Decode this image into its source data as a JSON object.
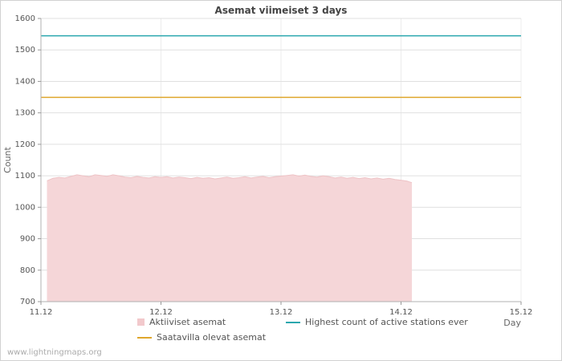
{
  "page": {
    "watermark": "www.lightningmaps.org"
  },
  "chart_data": {
    "type": "area",
    "title": "Asemat viimeiset 3 days",
    "xlabel": "Day",
    "ylabel": "Count",
    "xlim": [
      11.0,
      15.0
    ],
    "ylim": [
      700,
      1600
    ],
    "grid": true,
    "legend_position": "bottom",
    "x_ticks": [
      {
        "value": 11.0,
        "label": "11.12"
      },
      {
        "value": 12.0,
        "label": "12.12"
      },
      {
        "value": 13.0,
        "label": "13.12"
      },
      {
        "value": 14.0,
        "label": "14.12"
      },
      {
        "value": 15.0,
        "label": "15.12"
      }
    ],
    "y_ticks": [
      700,
      800,
      900,
      1000,
      1100,
      1200,
      1300,
      1400,
      1500,
      1600
    ],
    "series": [
      {
        "name": "Aktiiviset asemat",
        "kind": "area",
        "fill_color": "#f5d6d8",
        "stroke_color": "#eec3c6",
        "points": [
          [
            11.05,
            1084
          ],
          [
            11.1,
            1092
          ],
          [
            11.15,
            1095
          ],
          [
            11.2,
            1093
          ],
          [
            11.25,
            1098
          ],
          [
            11.3,
            1103
          ],
          [
            11.35,
            1100
          ],
          [
            11.4,
            1097
          ],
          [
            11.45,
            1103
          ],
          [
            11.5,
            1101
          ],
          [
            11.55,
            1098
          ],
          [
            11.6,
            1103
          ],
          [
            11.65,
            1100
          ],
          [
            11.7,
            1096
          ],
          [
            11.75,
            1094
          ],
          [
            11.8,
            1098
          ],
          [
            11.85,
            1095
          ],
          [
            11.9,
            1093
          ],
          [
            11.95,
            1097
          ],
          [
            12.0,
            1095
          ],
          [
            12.05,
            1097
          ],
          [
            12.1,
            1093
          ],
          [
            12.15,
            1096
          ],
          [
            12.2,
            1094
          ],
          [
            12.25,
            1091
          ],
          [
            12.3,
            1095
          ],
          [
            12.35,
            1092
          ],
          [
            12.4,
            1094
          ],
          [
            12.45,
            1090
          ],
          [
            12.5,
            1093
          ],
          [
            12.55,
            1096
          ],
          [
            12.6,
            1092
          ],
          [
            12.65,
            1094
          ],
          [
            12.7,
            1097
          ],
          [
            12.75,
            1093
          ],
          [
            12.8,
            1096
          ],
          [
            12.85,
            1098
          ],
          [
            12.9,
            1094
          ],
          [
            12.95,
            1097
          ],
          [
            13.0,
            1099
          ],
          [
            13.05,
            1101
          ],
          [
            13.1,
            1103
          ],
          [
            13.15,
            1099
          ],
          [
            13.2,
            1102
          ],
          [
            13.25,
            1098
          ],
          [
            13.3,
            1096
          ],
          [
            13.35,
            1100
          ],
          [
            13.4,
            1097
          ],
          [
            13.45,
            1093
          ],
          [
            13.5,
            1096
          ],
          [
            13.55,
            1092
          ],
          [
            13.6,
            1095
          ],
          [
            13.65,
            1091
          ],
          [
            13.7,
            1094
          ],
          [
            13.75,
            1090
          ],
          [
            13.8,
            1093
          ],
          [
            13.85,
            1089
          ],
          [
            13.9,
            1092
          ],
          [
            13.95,
            1088
          ],
          [
            14.0,
            1086
          ],
          [
            14.05,
            1083
          ],
          [
            14.09,
            1078
          ]
        ]
      },
      {
        "name": "Highest count of active stations ever",
        "kind": "hline",
        "color": "#2aa7ae",
        "value": 1545
      },
      {
        "name": "Saatavilla olevat asemat",
        "kind": "hline",
        "color": "#dfa62c",
        "value": 1349
      }
    ]
  },
  "legend": {
    "items": [
      {
        "label": "Aktiiviset asemat",
        "swatch": "area",
        "color": "#f2c9cc"
      },
      {
        "label": "Saatavilla olevat asemat",
        "swatch": "line",
        "color": "#dfa62c"
      },
      {
        "label": "Highest count of active stations ever",
        "swatch": "line",
        "color": "#2aa7ae"
      }
    ]
  }
}
